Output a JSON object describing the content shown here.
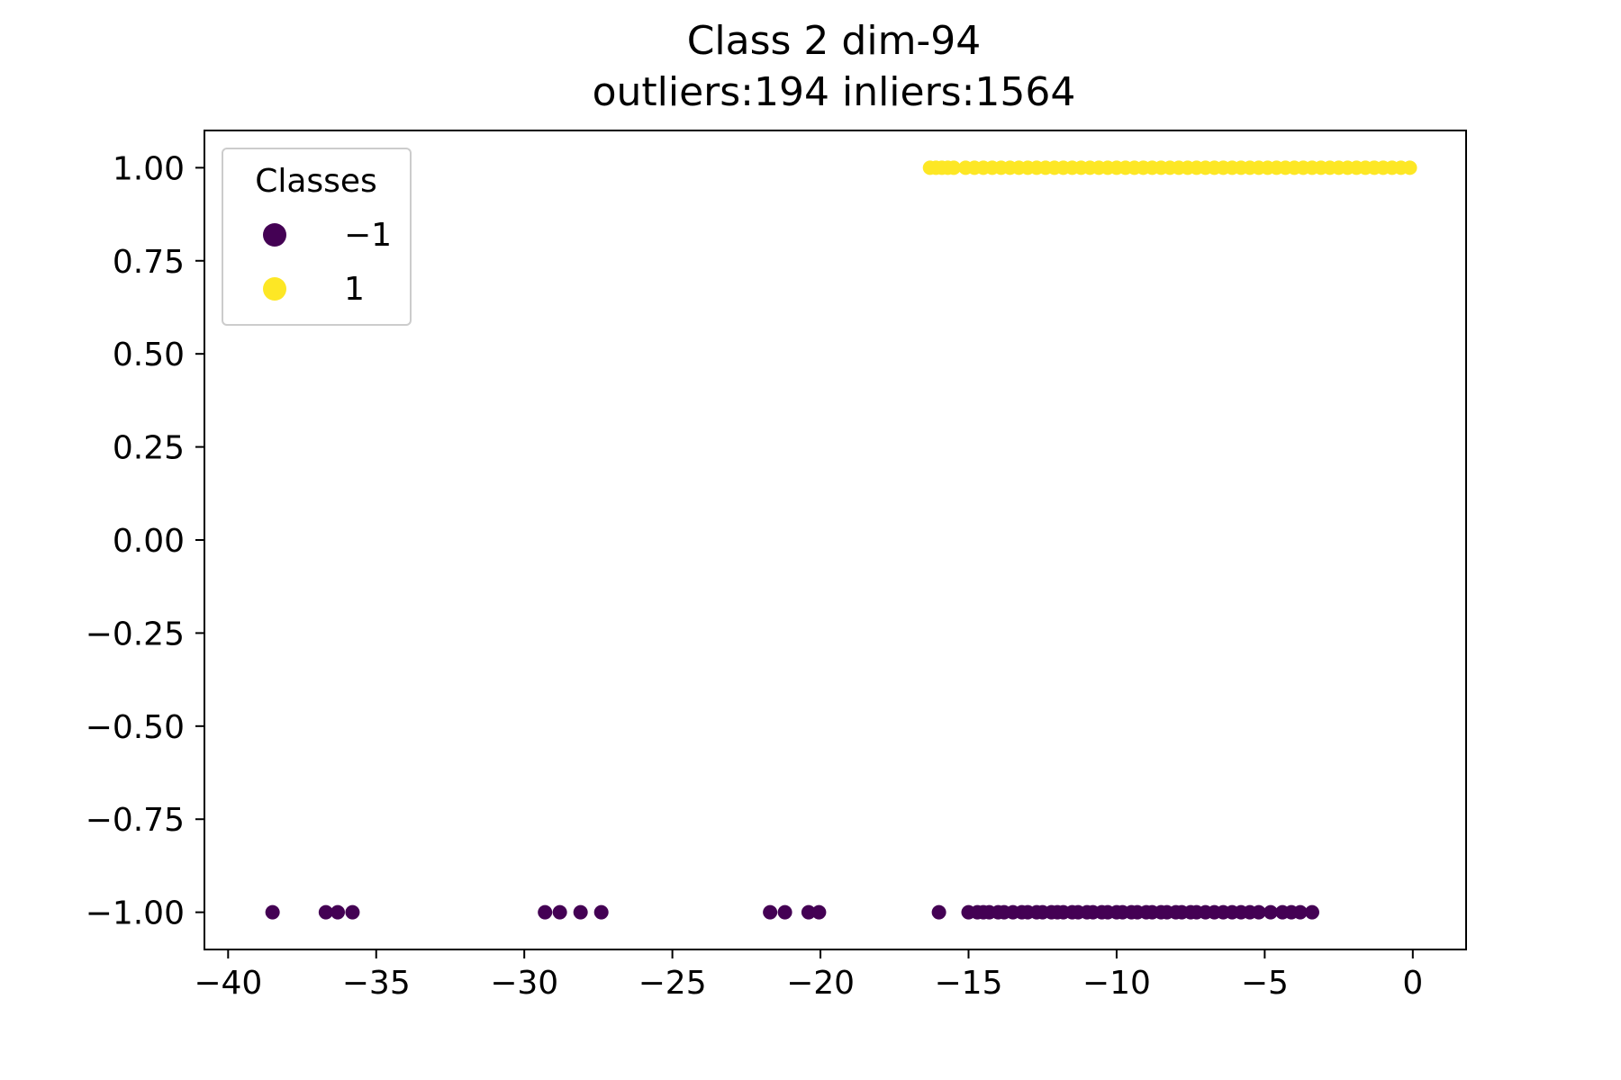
{
  "chart_data": {
    "type": "scatter",
    "title": "Class 2 dim-94",
    "subtitle": "outliers:194  inliers:1564",
    "xlabel": "",
    "ylabel": "",
    "xlim": [
      -40.8,
      1.8
    ],
    "ylim": [
      -1.1,
      1.1
    ],
    "x_ticks": [
      -40,
      -35,
      -30,
      -25,
      -20,
      -15,
      -10,
      -5,
      0
    ],
    "x_tick_labels": [
      "−40",
      "−35",
      "−30",
      "−25",
      "−20",
      "−15",
      "−10",
      "−5",
      "0"
    ],
    "y_ticks": [
      1.0,
      0.75,
      0.5,
      0.25,
      0.0,
      -0.25,
      -0.5,
      -0.75,
      -1.0
    ],
    "y_tick_labels": [
      "1.00",
      "0.75",
      "0.50",
      "0.25",
      "0.00",
      "−0.25",
      "−0.50",
      "−0.75",
      "−1.00"
    ],
    "grid": false,
    "legend": {
      "title": "Classes",
      "placement": "top-left",
      "entries": [
        {
          "label": "−1",
          "color": "#440154"
        },
        {
          "label": "1",
          "color": "#fde725"
        }
      ]
    },
    "series": [
      {
        "name": "−1",
        "color": "#440154",
        "x": [
          -38.5,
          -36.7,
          -36.3,
          -35.8,
          -29.3,
          -28.8,
          -28.1,
          -27.4,
          -21.7,
          -21.2,
          -20.4,
          -20.05,
          -16.0,
          -15.0,
          -14.7,
          -14.5,
          -14.3,
          -14.0,
          -13.8,
          -13.5,
          -13.2,
          -13.0,
          -12.7,
          -12.5,
          -12.2,
          -12.0,
          -11.8,
          -11.5,
          -11.3,
          -11.0,
          -10.8,
          -10.5,
          -10.3,
          -10.0,
          -9.8,
          -9.5,
          -9.3,
          -9.0,
          -8.8,
          -8.5,
          -8.3,
          -8.0,
          -7.8,
          -7.5,
          -7.3,
          -7.0,
          -6.7,
          -6.4,
          -6.1,
          -5.8,
          -5.5,
          -5.2,
          -4.8,
          -4.4,
          -4.1,
          -3.8,
          -3.4
        ],
        "y": [
          -1,
          -1,
          -1,
          -1,
          -1,
          -1,
          -1,
          -1,
          -1,
          -1,
          -1,
          -1,
          -1,
          -1,
          -1,
          -1,
          -1,
          -1,
          -1,
          -1,
          -1,
          -1,
          -1,
          -1,
          -1,
          -1,
          -1,
          -1,
          -1,
          -1,
          -1,
          -1,
          -1,
          -1,
          -1,
          -1,
          -1,
          -1,
          -1,
          -1,
          -1,
          -1,
          -1,
          -1,
          -1,
          -1,
          -1,
          -1,
          -1,
          -1,
          -1,
          -1,
          -1,
          -1,
          -1,
          -1,
          -1
        ]
      },
      {
        "name": "1",
        "color": "#fde725",
        "x": [
          -16.3,
          -16.1,
          -15.9,
          -15.7,
          -15.5,
          -15.1,
          -14.8,
          -14.5,
          -14.2,
          -13.9,
          -13.6,
          -13.3,
          -13.0,
          -12.7,
          -12.4,
          -12.1,
          -11.8,
          -11.5,
          -11.2,
          -10.9,
          -10.6,
          -10.3,
          -10.0,
          -9.7,
          -9.4,
          -9.1,
          -8.8,
          -8.5,
          -8.2,
          -7.9,
          -7.6,
          -7.3,
          -7.0,
          -6.7,
          -6.4,
          -6.1,
          -5.8,
          -5.5,
          -5.2,
          -4.9,
          -4.6,
          -4.3,
          -4.0,
          -3.7,
          -3.4,
          -3.1,
          -2.8,
          -2.5,
          -2.2,
          -1.9,
          -1.6,
          -1.3,
          -1.0,
          -0.7,
          -0.4,
          -0.1
        ],
        "y": [
          1,
          1,
          1,
          1,
          1,
          1,
          1,
          1,
          1,
          1,
          1,
          1,
          1,
          1,
          1,
          1,
          1,
          1,
          1,
          1,
          1,
          1,
          1,
          1,
          1,
          1,
          1,
          1,
          1,
          1,
          1,
          1,
          1,
          1,
          1,
          1,
          1,
          1,
          1,
          1,
          1,
          1,
          1,
          1,
          1,
          1,
          1,
          1,
          1,
          1,
          1,
          1,
          1,
          1,
          1,
          1
        ]
      }
    ]
  }
}
